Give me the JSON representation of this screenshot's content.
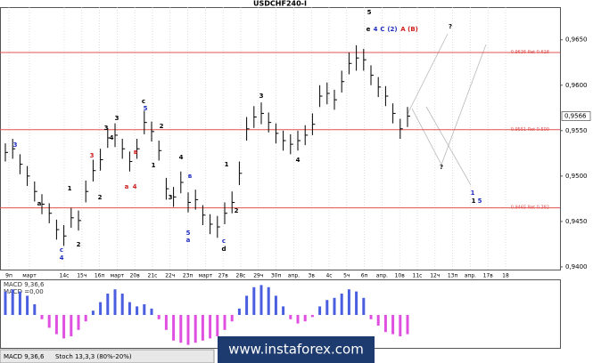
{
  "chart_data": [
    {
      "type": "ohlc",
      "title": "USDCHF240-I",
      "categories": [
        "9п",
        "март",
        "14с",
        "15ч",
        "16п",
        "март",
        "20в",
        "21с",
        "22ч",
        "23п",
        "март",
        "27в",
        "28с",
        "29ч",
        "30п",
        "апр.",
        "3в",
        "4с",
        "5ч",
        "6п",
        "апр.",
        "10в",
        "11с",
        "12ч",
        "13п",
        "апр.",
        "17в",
        "18"
      ],
      "high": [
        0.9536,
        0.9541,
        0.9524,
        0.9511,
        0.9494,
        0.948,
        0.947,
        0.9452,
        0.9446,
        0.9465,
        0.9462,
        0.9495,
        0.9518,
        0.953,
        0.9553,
        0.9558,
        0.9541,
        0.9527,
        0.9541,
        0.9572,
        0.956,
        0.9539,
        0.9498,
        0.9488,
        0.9505,
        0.9482,
        0.9485,
        0.9468,
        0.9458,
        0.9456,
        0.9471,
        0.9483,
        0.9516,
        0.9565,
        0.9577,
        0.9581,
        0.957,
        0.9558,
        0.955,
        0.9546,
        0.955,
        0.9556,
        0.9569,
        0.96,
        0.9603,
        0.9595,
        0.9616,
        0.9636,
        0.9644,
        0.964,
        0.9622,
        0.9609,
        0.9599,
        0.958,
        0.9563,
        0.9576
      ],
      "low": [
        0.9516,
        0.9519,
        0.9502,
        0.9489,
        0.9472,
        0.9458,
        0.9448,
        0.943,
        0.9423,
        0.9443,
        0.944,
        0.9471,
        0.9494,
        0.9506,
        0.9531,
        0.9532,
        0.9519,
        0.9505,
        0.9519,
        0.9546,
        0.9538,
        0.9517,
        0.9474,
        0.9466,
        0.9481,
        0.946,
        0.9463,
        0.9446,
        0.9436,
        0.9432,
        0.9447,
        0.9459,
        0.949,
        0.9539,
        0.9553,
        0.9557,
        0.9548,
        0.9536,
        0.9528,
        0.9524,
        0.9528,
        0.9534,
        0.9545,
        0.9576,
        0.9579,
        0.9573,
        0.9592,
        0.9612,
        0.9616,
        0.9616,
        0.96,
        0.9587,
        0.9577,
        0.9558,
        0.9541,
        0.9554
      ],
      "close": [
        0.9526,
        0.953,
        0.9513,
        0.95,
        0.9483,
        0.9469,
        0.9459,
        0.9441,
        0.9434,
        0.9454,
        0.9451,
        0.9483,
        0.9506,
        0.9518,
        0.9542,
        0.9545,
        0.953,
        0.9516,
        0.953,
        0.9559,
        0.9549,
        0.9528,
        0.9486,
        0.9477,
        0.9493,
        0.9471,
        0.9474,
        0.9457,
        0.9447,
        0.9444,
        0.9459,
        0.9471,
        0.9503,
        0.9552,
        0.9565,
        0.9569,
        0.9559,
        0.9547,
        0.9539,
        0.9535,
        0.9539,
        0.9545,
        0.9557,
        0.9588,
        0.9591,
        0.9584,
        0.9604,
        0.9624,
        0.963,
        0.9628,
        0.9611,
        0.9598,
        0.9588,
        0.9569,
        0.9552,
        0.9566
      ],
      "color": "#000000",
      "ylim": [
        0.9397,
        0.9686
      ],
      "yticks": [
        {
          "value": 0.965,
          "label": "0,9650"
        },
        {
          "value": 0.96,
          "label": "0,9600"
        },
        {
          "value": 0.955,
          "label": "0,9550"
        },
        {
          "value": 0.95,
          "label": "0,9500"
        },
        {
          "value": 0.945,
          "label": "0,9450"
        },
        {
          "value": 0.94,
          "label": "0,9400"
        }
      ],
      "grid": true,
      "hlines": [
        {
          "value": 0.9636,
          "label": "0.9636 Ret 0.618",
          "color": "#e05050"
        },
        {
          "value": 0.9551,
          "label": "0.9551 Ret 0.500",
          "color": "#e05050"
        },
        {
          "value": 0.9465,
          "label": "0.9465 Ret 0.382",
          "color": "#e05050"
        }
      ],
      "last_price": {
        "value": 0.9566,
        "label": "0,9566"
      },
      "annotations": [
        {
          "text": "3",
          "color": "#1f2fbf"
        },
        {
          "text": "а",
          "color": "#000000"
        },
        {
          "text": "с",
          "color": "#1f2fbf"
        },
        {
          "text": "4",
          "color": "#1f2fbf"
        },
        {
          "text": "1",
          "color": "#000000"
        },
        {
          "text": "2",
          "color": "#000000"
        },
        {
          "text": "3",
          "color": "#d02020"
        },
        {
          "text": "2",
          "color": "#000000"
        },
        {
          "text": "3",
          "color": "#000000"
        },
        {
          "text": "3",
          "color": "#000000"
        },
        {
          "text": "4",
          "color": "#000000"
        },
        {
          "text": "а",
          "color": "#d02020"
        },
        {
          "text": "4",
          "color": "#d02020"
        },
        {
          "text": "в",
          "color": "#d02020"
        },
        {
          "text": "с",
          "color": "#000000"
        },
        {
          "text": "5",
          "color": "#1f2fbf"
        },
        {
          "text": "1",
          "color": "#000000"
        },
        {
          "text": "2",
          "color": "#000000"
        },
        {
          "text": "3",
          "color": "#000000"
        },
        {
          "text": "4",
          "color": "#000000"
        },
        {
          "text": "5",
          "color": "#1f2fbf"
        },
        {
          "text": "а",
          "color": "#1f2fbf"
        },
        {
          "text": "в",
          "color": "#1f2fbf"
        },
        {
          "text": "с",
          "color": "#1f2fbf"
        },
        {
          "text": "d",
          "color": "#000000"
        },
        {
          "text": "1",
          "color": "#000000"
        },
        {
          "text": "2",
          "color": "#000000"
        },
        {
          "text": "3",
          "color": "#000000"
        },
        {
          "text": "4",
          "color": "#000000"
        },
        {
          "text": "5",
          "color": "#000000"
        },
        {
          "text": "е",
          "color": "#000000"
        },
        {
          "text": "4",
          "color": "#1f2fbf"
        },
        {
          "text": "С",
          "color": "#1f2fbf"
        },
        {
          "text": "(2)",
          "color": "#1f2fbf"
        },
        {
          "text": "А",
          "color": "#d02020"
        },
        {
          "text": "(В)",
          "color": "#d02020"
        },
        {
          "text": "?",
          "color": "#000000"
        },
        {
          "text": "?",
          "color": "#000000"
        },
        {
          "text": "1",
          "color": "#1f2fbf"
        },
        {
          "text": "1",
          "color": "#000000"
        },
        {
          "text": "5",
          "color": "#1f2fbf"
        }
      ]
    },
    {
      "type": "histogram",
      "title": "MACD 9,36,6",
      "subtitle": "MACD =0,00",
      "values": [
        0.0022,
        0.0024,
        0.0022,
        0.0018,
        0.001,
        -0.0004,
        -0.0012,
        -0.0018,
        -0.0022,
        -0.002,
        -0.0014,
        -0.0006,
        0.0004,
        0.0012,
        0.002,
        0.0024,
        0.002,
        0.0012,
        0.0008,
        0.001,
        0.0006,
        -0.0004,
        -0.0014,
        -0.0024,
        -0.0026,
        -0.0028,
        -0.0026,
        -0.0024,
        -0.0022,
        -0.002,
        -0.0014,
        -0.0006,
        0.0006,
        0.0018,
        0.0026,
        0.0028,
        0.0026,
        0.0018,
        0.0008,
        -0.0004,
        -0.0008,
        -0.0006,
        -0.0002,
        0.0008,
        0.0014,
        0.0016,
        0.002,
        0.0024,
        0.0022,
        0.0016,
        -0.0004,
        -0.001,
        -0.0016,
        -0.0018,
        -0.002,
        -0.0018
      ],
      "colors": {
        "positive": "#4a5ee0",
        "negative": "#e050e0"
      },
      "ylim": [
        -0.003,
        0.003
      ]
    }
  ],
  "tabs": [
    "MACD 9,36,6",
    "Stoch 13,3,3 (80%-20%)"
  ],
  "watermark": "www.instaforex.com"
}
